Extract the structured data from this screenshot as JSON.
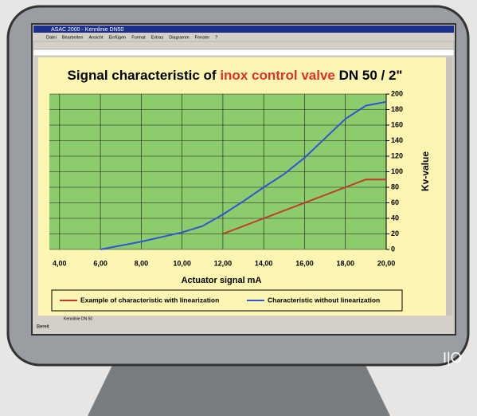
{
  "window": {
    "title": "ASAC 2000 - Kennlinie DN50",
    "menu": [
      "Datei",
      "Bearbeiten",
      "Ansicht",
      "Einfügen",
      "Format",
      "Extras",
      "Diagramm",
      "Fenster",
      "?"
    ],
    "sheet_tab": "Kennlinie DN 50",
    "status": "Bereit"
  },
  "chart_data": {
    "type": "line",
    "title": [
      {
        "text": "Signal characteristic of ",
        "color": "#000000"
      },
      {
        "text": "inox control valve",
        "color": "#e0302a"
      },
      {
        "text": " DN 50 / 2\"",
        "color": "#000000"
      }
    ],
    "x_label": "Actuator signal mA",
    "y_label": "Kv-value",
    "x": [
      6,
      8,
      10,
      11,
      12,
      13,
      14,
      15,
      16,
      17,
      18,
      19,
      20
    ],
    "series": [
      {
        "name": "Example of characteristic with linearization",
        "color": "#c0392b",
        "values": [
          null,
          null,
          null,
          null,
          20,
          30,
          40,
          50,
          60,
          70,
          80,
          90,
          90
        ]
      },
      {
        "name": "Characteristic without linearization",
        "color": "#2f55d4",
        "values": [
          0,
          10,
          22,
          30,
          45,
          62,
          80,
          97,
          118,
          143,
          168,
          185,
          190
        ]
      }
    ],
    "xlim": [
      3.5,
      20
    ],
    "xticks": [
      {
        "value": 4,
        "label": "4,00"
      },
      {
        "value": 6,
        "label": "6,00"
      },
      {
        "value": 8,
        "label": "8,00"
      },
      {
        "value": 10,
        "label": "10,00"
      },
      {
        "value": 12,
        "label": "12,00"
      },
      {
        "value": 14,
        "label": "14,00"
      },
      {
        "value": 16,
        "label": "16,00"
      },
      {
        "value": 18,
        "label": "18,00"
      },
      {
        "value": 20,
        "label": "20,00"
      }
    ],
    "ylim": [
      0,
      200
    ],
    "yticks": [
      0,
      20,
      40,
      60,
      80,
      100,
      120,
      140,
      160,
      180,
      200
    ],
    "grid": true,
    "legend": "bottom"
  }
}
